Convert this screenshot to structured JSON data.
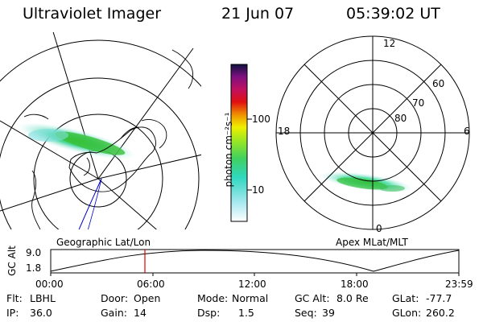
{
  "header": {
    "instrument": "Ultraviolet Imager",
    "date": "21 Jun 07",
    "time": "05:39:02 UT"
  },
  "colorbar": {
    "label": "photon cm⁻²s⁻¹",
    "ticks": [
      "100",
      "10"
    ]
  },
  "polar_plot": {
    "mlt_labels": [
      "12",
      "18",
      "6",
      "0"
    ],
    "lat_labels": [
      "60",
      "70",
      "80"
    ]
  },
  "panel_labels": {
    "left": "Geographic Lat/Lon",
    "right": "Apex MLat/MLT"
  },
  "orbit": {
    "ylabel": "GC Alt",
    "y_ticks": [
      "9.0",
      "1.8"
    ],
    "x_ticks": [
      "00:00",
      "06:00",
      "12:00",
      "18:00",
      "23:59"
    ],
    "current_time_marker": "05:39"
  },
  "footer": {
    "row1": [
      {
        "label": "Flt:",
        "value": "LBHL"
      },
      {
        "label": "Door:",
        "value": "Open"
      },
      {
        "label": "Mode:",
        "value": "Normal"
      },
      {
        "label": "GC Alt:",
        "value": "8.0 Re"
      },
      {
        "label": "GLat:",
        "value": "-77.7"
      }
    ],
    "row2": [
      {
        "label": "IP:",
        "value": "36.0"
      },
      {
        "label": "Gain:",
        "value": "14"
      },
      {
        "label": "Dsp:",
        "value": "1.5"
      },
      {
        "label": "Seq:",
        "value": "39"
      },
      {
        "label": "GLon:",
        "value": "260.2"
      }
    ]
  },
  "colors": {
    "marker": "#e00000",
    "track": "#0000cc",
    "aurora_low": "#40e0c8",
    "aurora_high": "#40c020"
  }
}
